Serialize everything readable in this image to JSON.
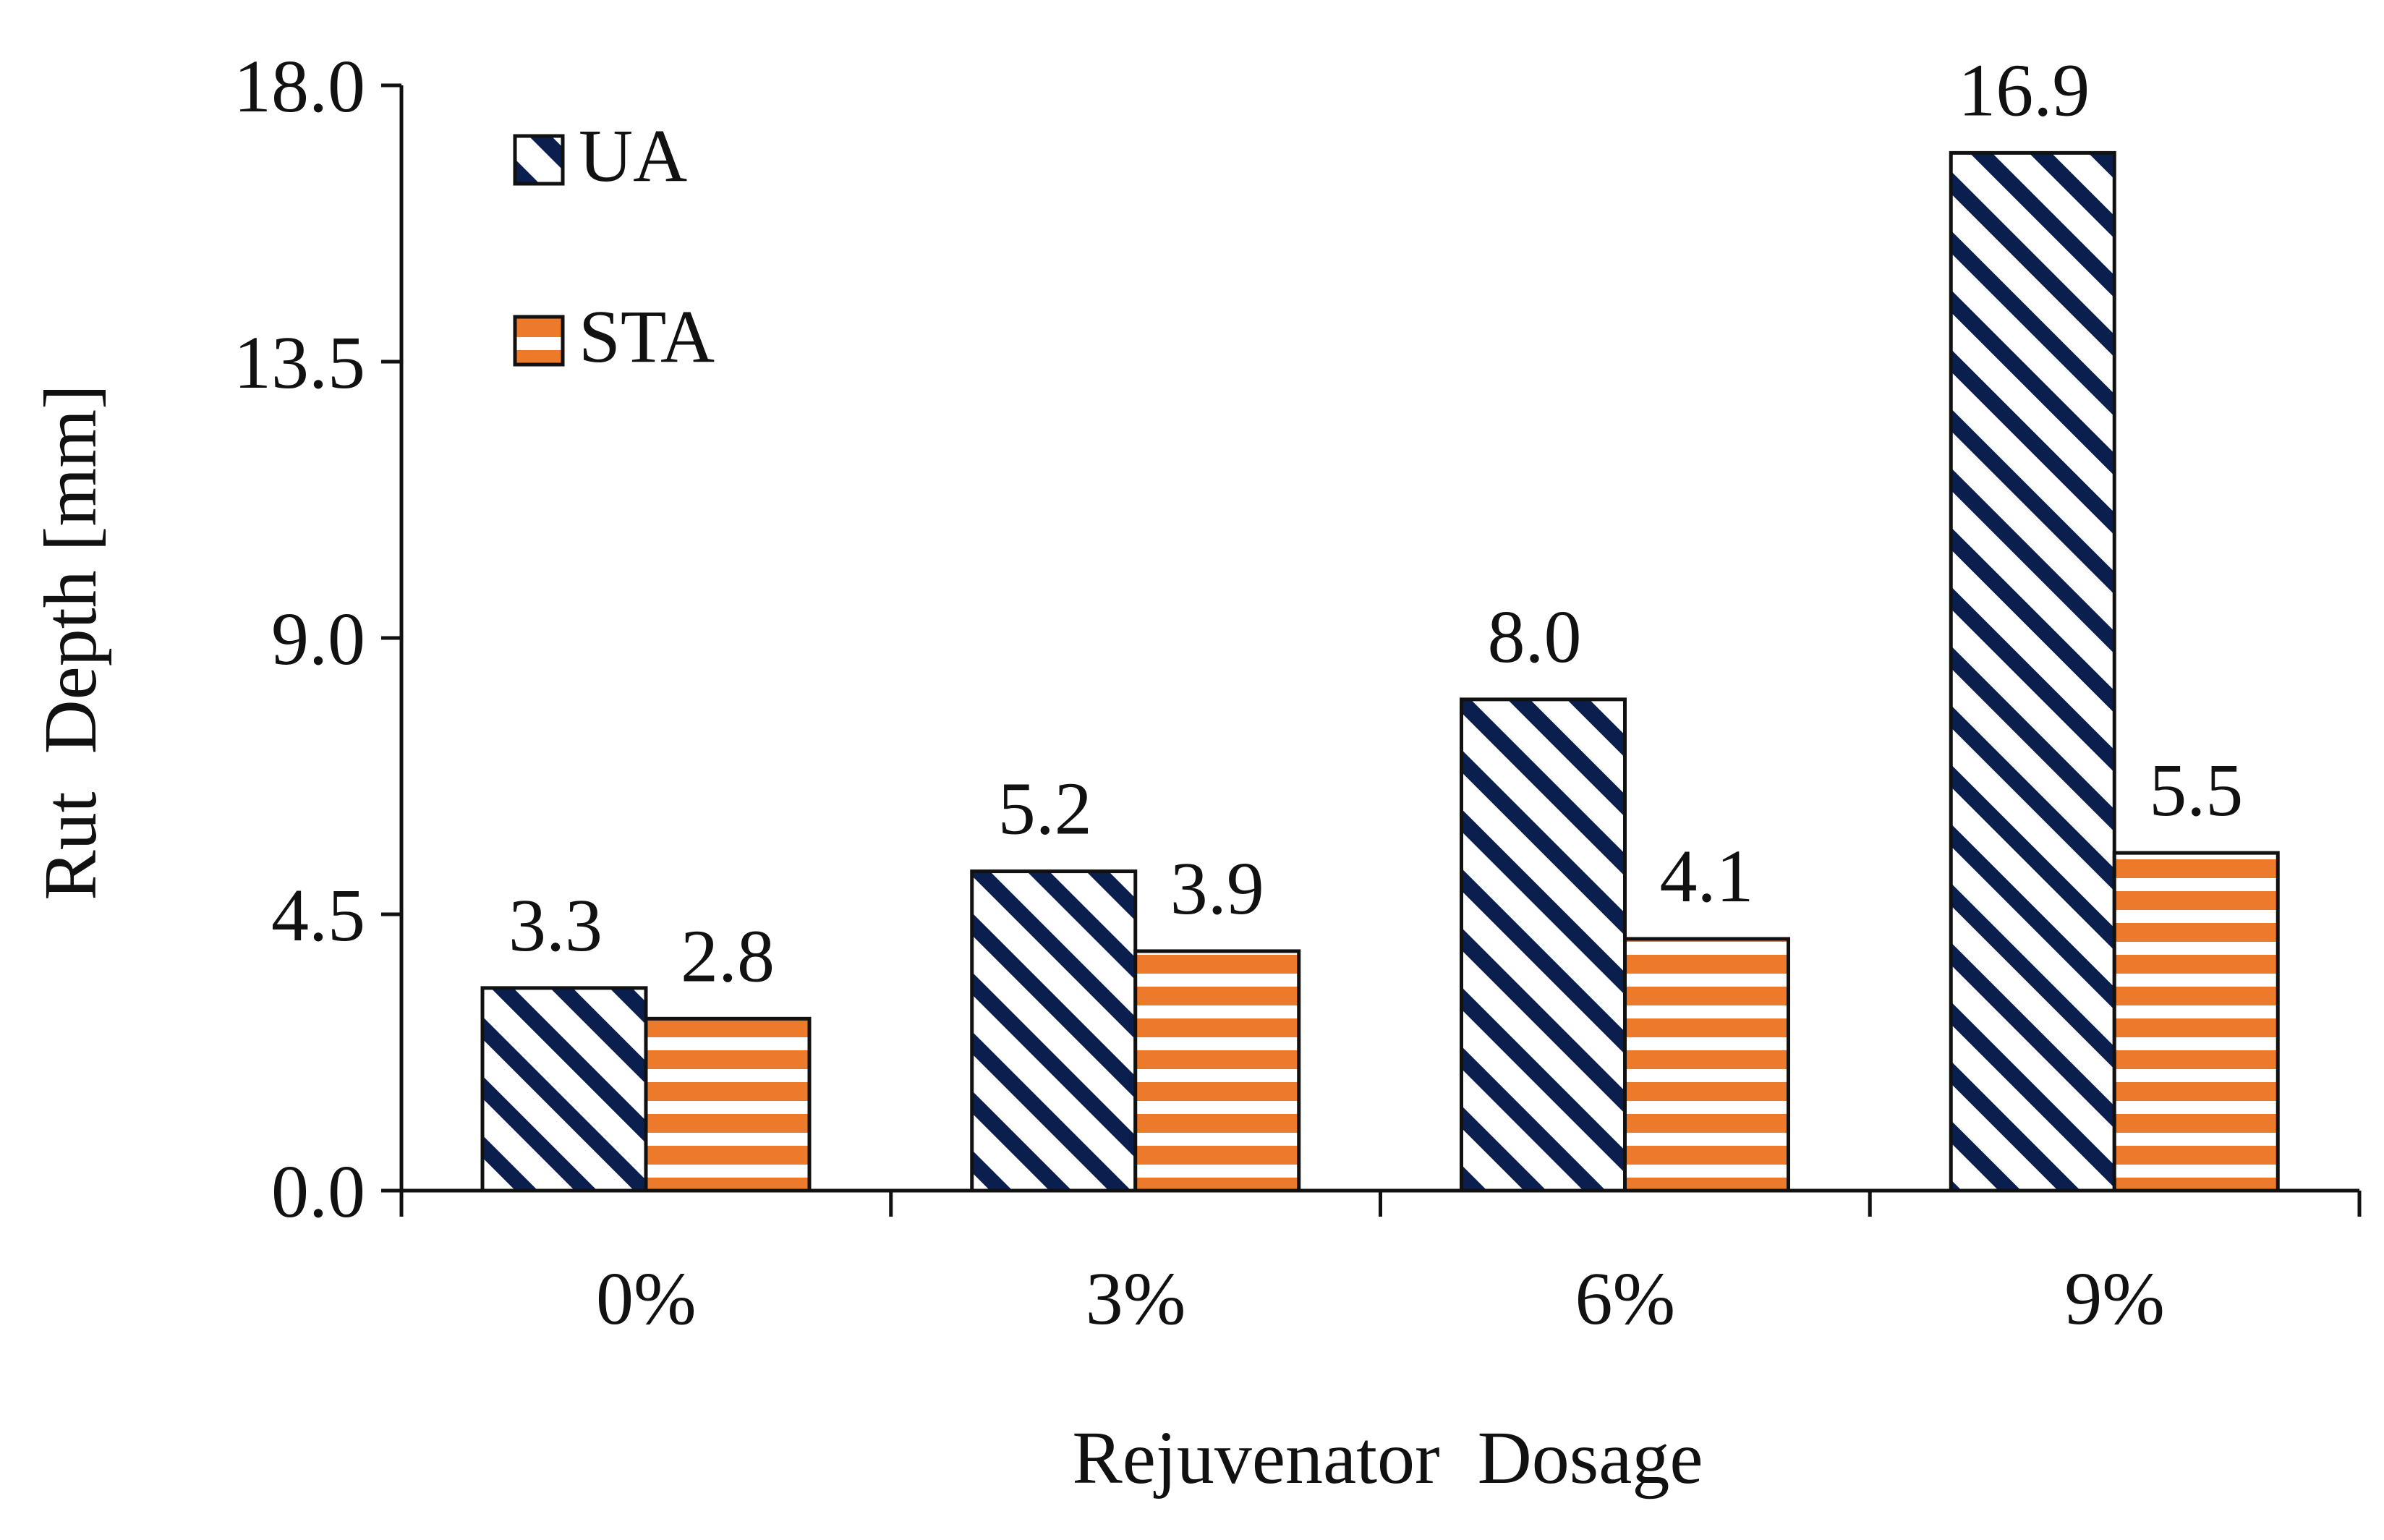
{
  "chart_data": {
    "type": "bar",
    "title": "",
    "xlabel": "Rejuvenator  Dosage",
    "ylabel": "Rut  Depth [mm]",
    "categories": [
      "0%",
      "3%",
      "6%",
      "9%"
    ],
    "series": [
      {
        "name": "UA",
        "values": [
          3.3,
          5.2,
          8.0,
          16.9
        ],
        "labels": [
          "3.3",
          "5.2",
          "8.0",
          "16.9"
        ],
        "pattern": "diagonal-stripes",
        "color": "#0b1f4f"
      },
      {
        "name": "STA",
        "values": [
          2.8,
          3.9,
          4.1,
          5.5
        ],
        "labels": [
          "2.8",
          "3.9",
          "4.1",
          "5.5"
        ],
        "pattern": "horizontal-stripes",
        "color": "#ec7a2a"
      }
    ],
    "ylim": [
      0,
      18
    ],
    "yticks": [
      "0.0",
      "4.5",
      "9.0",
      "13.5",
      "18.0"
    ],
    "grid": false,
    "legend_position": "top-left"
  }
}
